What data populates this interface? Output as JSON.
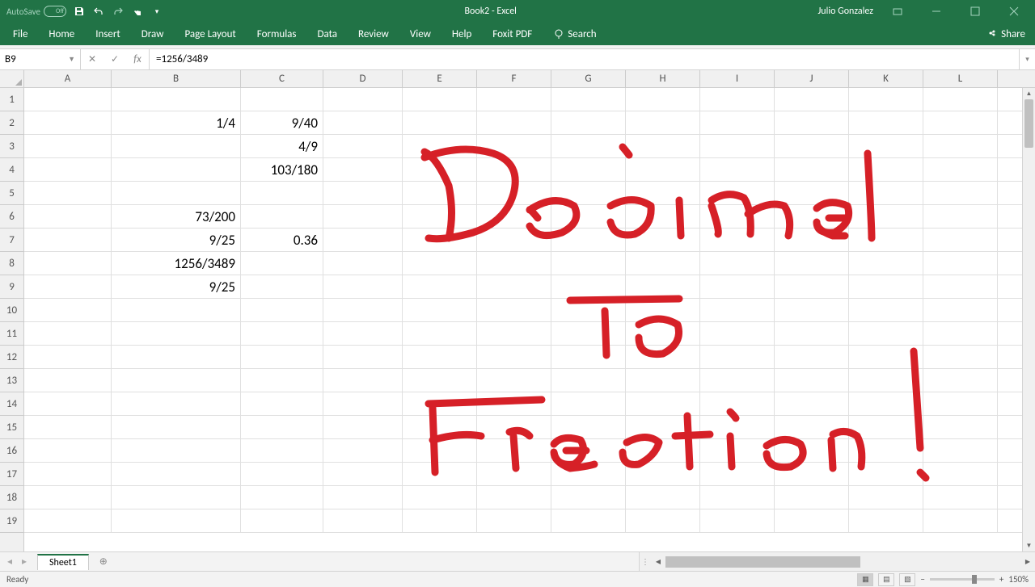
{
  "title": "Book2 - Excel",
  "user": "Julio Gonzalez",
  "autosave_label": "AutoSave",
  "autosave_state": "Off",
  "ribbon": {
    "tabs": [
      "File",
      "Home",
      "Insert",
      "Draw",
      "Page Layout",
      "Formulas",
      "Data",
      "Review",
      "View",
      "Help",
      "Foxit PDF"
    ],
    "search_label": "Search",
    "share_label": "Share"
  },
  "name_box": "B9",
  "formula": "=1256/3489",
  "columns": [
    "A",
    "B",
    "C",
    "D",
    "E",
    "F",
    "G",
    "H",
    "I",
    "J",
    "K",
    "L"
  ],
  "row_count": 19,
  "cells": {
    "B2": "1/4",
    "C2": "9/40",
    "C3": "4/9",
    "C4": "103/180",
    "B6": "73/200",
    "B7": "9/25",
    "C7": "0.36",
    "B8": "1256/3489",
    "B9": "9/25"
  },
  "sheet_tab": "Sheet1",
  "status": "Ready",
  "zoom": "150%",
  "handwriting": {
    "line1": "Decimal",
    "line2": "To",
    "line3": "Fraction!",
    "color": "#d62027"
  }
}
